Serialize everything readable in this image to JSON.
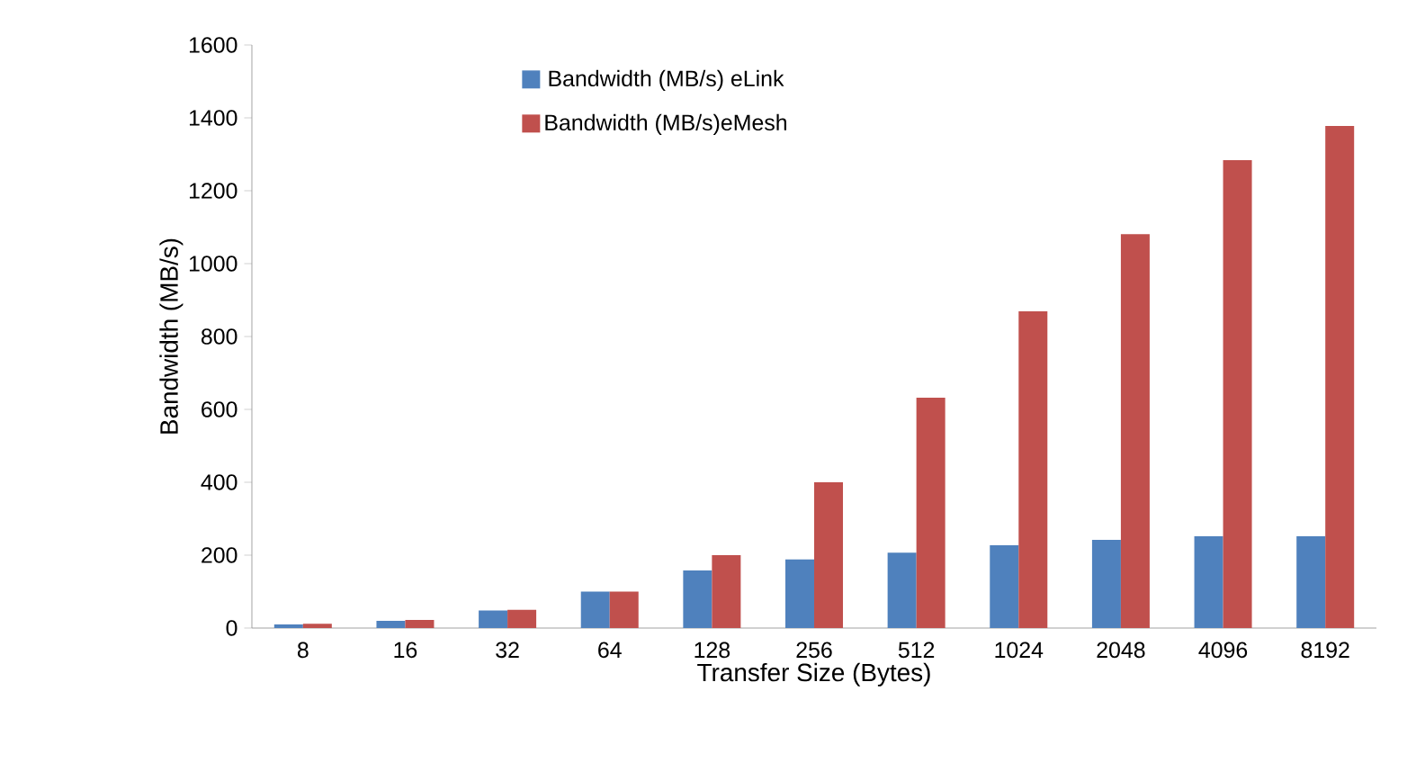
{
  "chart_data": {
    "type": "bar",
    "xlabel": "Transfer Size (Bytes)",
    "ylabel": "Bandwidth (MB/s)",
    "categories": [
      "8",
      "16",
      "32",
      "64",
      "128",
      "256",
      "512",
      "1024",
      "2048",
      "4096",
      "8192"
    ],
    "series": [
      {
        "name": "Bandwidth (MB/s) eLink",
        "color": "#4f81bd",
        "values": [
          10,
          20,
          48,
          100,
          158,
          188,
          207,
          227,
          242,
          252,
          252
        ]
      },
      {
        "name": "Bandwidth (MB/s)eMesh",
        "color": "#c0504d",
        "values": [
          12,
          22,
          50,
          100,
          200,
          400,
          632,
          869,
          1081,
          1284,
          1378
        ]
      }
    ],
    "ylim": [
      0,
      1600
    ],
    "yticks": [
      0,
      200,
      400,
      600,
      800,
      1000,
      1200,
      1400,
      1600
    ],
    "grid": false,
    "legend": "top"
  }
}
